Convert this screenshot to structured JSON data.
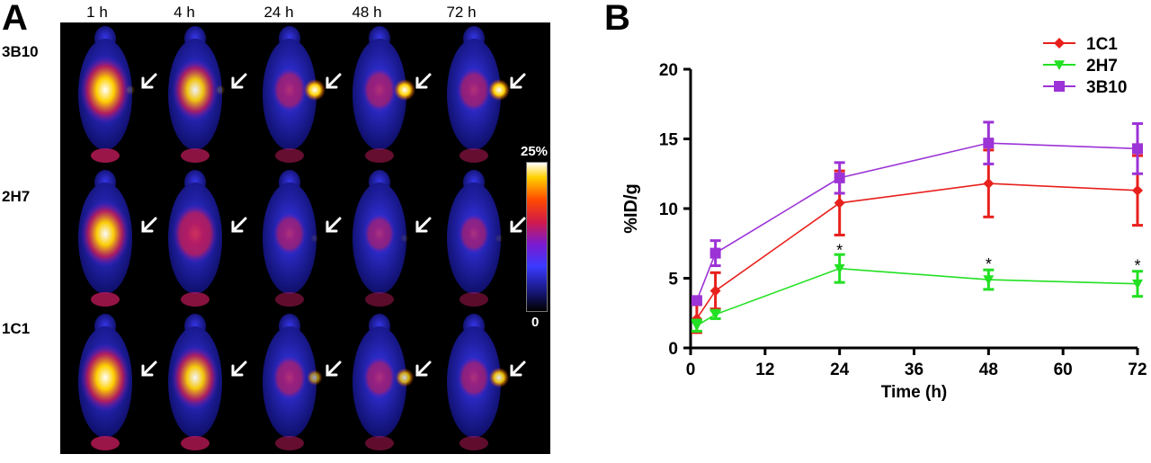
{
  "panel_a": {
    "letter": "A",
    "time_labels": [
      "1 h",
      "4 h",
      "24 h",
      "48 h",
      "72 h"
    ],
    "row_labels": [
      "3B10",
      "2H7",
      "1C1"
    ],
    "colorbar": {
      "max_label": "25%",
      "min_label": "0"
    }
  },
  "panel_b": {
    "letter": "B"
  },
  "chart_data": {
    "type": "line",
    "title": "",
    "xlabel": "Time (h)",
    "ylabel": "%ID/g",
    "xlim": [
      0,
      72
    ],
    "ylim": [
      0,
      20
    ],
    "xticks": [
      0,
      12,
      24,
      36,
      48,
      60,
      72
    ],
    "yticks": [
      0,
      5,
      10,
      15,
      20
    ],
    "grid": false,
    "legend": "top-right",
    "series": [
      {
        "name": "1C1",
        "color": "#e8201c",
        "marker": "diamond",
        "x": [
          1,
          4,
          24,
          48,
          72
        ],
        "y": [
          2.1,
          4.1,
          10.4,
          11.8,
          11.3
        ],
        "err": [
          1.0,
          1.3,
          2.3,
          2.4,
          2.5
        ]
      },
      {
        "name": "2H7",
        "color": "#22e022",
        "marker": "triangle-down",
        "x": [
          1,
          4,
          24,
          48,
          72
        ],
        "y": [
          1.6,
          2.4,
          5.7,
          4.9,
          4.6
        ],
        "err": [
          0.4,
          0.3,
          1.0,
          0.7,
          0.9
        ]
      },
      {
        "name": "3B10",
        "color": "#9c33d6",
        "marker": "square",
        "x": [
          1,
          4,
          24,
          48,
          72
        ],
        "y": [
          3.4,
          6.8,
          12.2,
          14.7,
          14.3
        ],
        "err": [
          0.2,
          0.9,
          1.1,
          1.5,
          1.8
        ]
      }
    ],
    "annotations": [
      {
        "text": "*",
        "x": 24,
        "y": 7.0
      },
      {
        "text": "*",
        "x": 48,
        "y": 6.0
      },
      {
        "text": "*",
        "x": 72,
        "y": 5.9
      }
    ]
  }
}
